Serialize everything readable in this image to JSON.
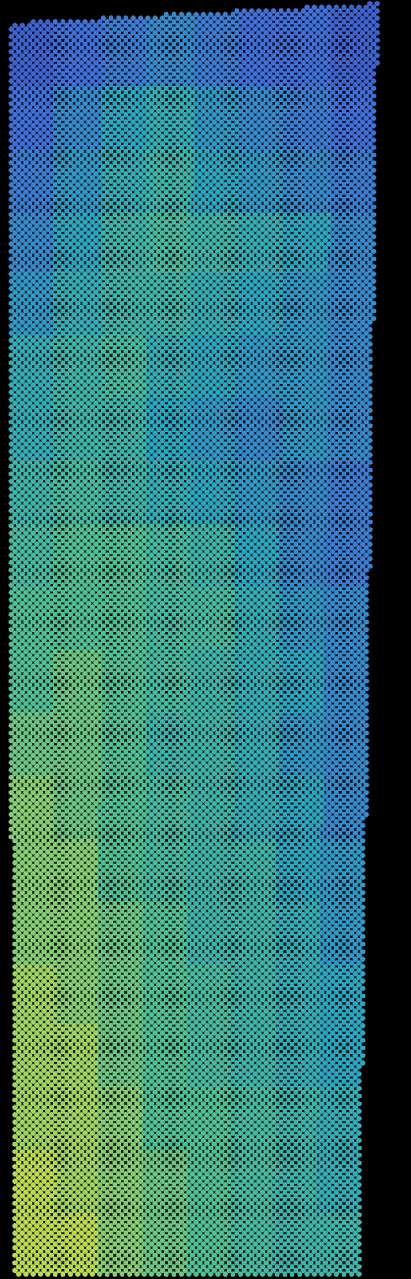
{
  "chart_data": {
    "type": "heatmap",
    "tick_labels": false,
    "color_range": [
      0,
      1
    ],
    "cells": [
      [
        0.15,
        0.2,
        0.25,
        0.3,
        0.25,
        0.2,
        0.2,
        0.15
      ],
      [
        0.2,
        0.3,
        0.4,
        0.45,
        0.35,
        0.3,
        0.25,
        0.2
      ],
      [
        0.25,
        0.35,
        0.45,
        0.5,
        0.4,
        0.35,
        0.3,
        0.25
      ],
      [
        0.3,
        0.4,
        0.5,
        0.55,
        0.5,
        0.45,
        0.4,
        0.3
      ],
      [
        0.35,
        0.45,
        0.5,
        0.5,
        0.45,
        0.4,
        0.35,
        0.3
      ],
      [
        0.45,
        0.5,
        0.55,
        0.45,
        0.4,
        0.35,
        0.35,
        0.3
      ],
      [
        0.45,
        0.5,
        0.5,
        0.4,
        0.35,
        0.3,
        0.35,
        0.3
      ],
      [
        0.5,
        0.55,
        0.5,
        0.45,
        0.4,
        0.35,
        0.3,
        0.25
      ],
      [
        0.55,
        0.6,
        0.6,
        0.55,
        0.5,
        0.4,
        0.3,
        0.25
      ],
      [
        0.6,
        0.6,
        0.6,
        0.55,
        0.55,
        0.45,
        0.35,
        0.3
      ],
      [
        0.6,
        0.65,
        0.6,
        0.55,
        0.5,
        0.45,
        0.4,
        0.3
      ],
      [
        0.65,
        0.65,
        0.6,
        0.5,
        0.5,
        0.45,
        0.35,
        0.3
      ],
      [
        0.7,
        0.65,
        0.6,
        0.55,
        0.5,
        0.45,
        0.4,
        0.3
      ],
      [
        0.7,
        0.7,
        0.6,
        0.55,
        0.5,
        0.5,
        0.4,
        0.35
      ],
      [
        0.7,
        0.7,
        0.65,
        0.6,
        0.5,
        0.5,
        0.45,
        0.35
      ],
      [
        0.75,
        0.7,
        0.65,
        0.6,
        0.55,
        0.5,
        0.45,
        0.4
      ],
      [
        0.75,
        0.75,
        0.65,
        0.6,
        0.55,
        0.5,
        0.45,
        0.4
      ],
      [
        0.75,
        0.75,
        0.7,
        0.6,
        0.6,
        0.55,
        0.5,
        0.45
      ],
      [
        0.8,
        0.75,
        0.7,
        0.65,
        0.6,
        0.55,
        0.5,
        0.45
      ],
      [
        0.8,
        0.8,
        0.7,
        0.65,
        0.6,
        0.55,
        0.5,
        0.5
      ]
    ]
  }
}
